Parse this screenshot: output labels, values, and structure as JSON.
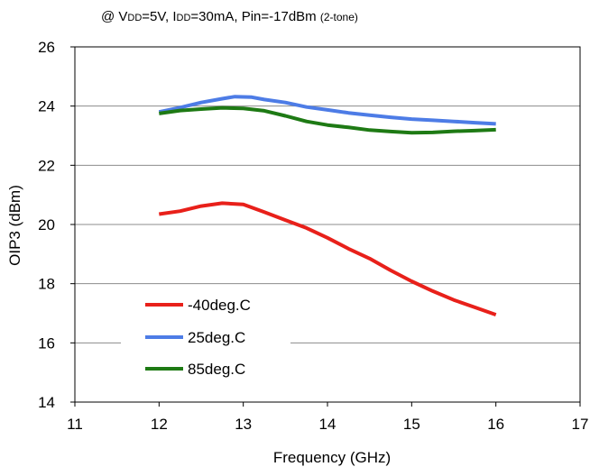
{
  "chart_data": {
    "type": "line",
    "subtitle": {
      "prefix": "@ V",
      "vdd_sub": "DD",
      "mid1": "=5V, I",
      "idd_sub": "DD",
      "mid2": "=30mA, Pin=-17dBm",
      "note": "(2-tone)"
    },
    "xlabel": "Frequency (GHz)",
    "ylabel": "OIP3 (dBm)",
    "xlim": [
      11,
      17
    ],
    "ylim": [
      14,
      26
    ],
    "xticks": [
      11,
      12,
      13,
      14,
      15,
      16,
      17
    ],
    "yticks": [
      14,
      16,
      18,
      20,
      22,
      24,
      26
    ],
    "grid": "horizontal",
    "legend_position": "bottom-left",
    "series": [
      {
        "name": "-40deg.C",
        "color": "#e8201a",
        "x": [
          12.0,
          12.25,
          12.5,
          12.75,
          13.0,
          13.25,
          13.5,
          13.75,
          14.0,
          14.25,
          14.5,
          14.75,
          15.0,
          15.25,
          15.5,
          15.75,
          16.0
        ],
        "y": [
          20.35,
          20.45,
          20.62,
          20.72,
          20.68,
          20.42,
          20.15,
          19.88,
          19.55,
          19.18,
          18.85,
          18.45,
          18.08,
          17.75,
          17.45,
          17.2,
          16.95
        ]
      },
      {
        "name": "25deg.C",
        "color": "#4d7ce6",
        "x": [
          12.0,
          12.25,
          12.5,
          12.75,
          12.9,
          13.1,
          13.25,
          13.5,
          13.75,
          14.0,
          14.25,
          14.5,
          14.75,
          15.0,
          15.25,
          15.5,
          15.75,
          16.0
        ],
        "y": [
          23.8,
          23.95,
          24.12,
          24.25,
          24.32,
          24.3,
          24.22,
          24.12,
          23.97,
          23.87,
          23.77,
          23.69,
          23.62,
          23.56,
          23.52,
          23.48,
          23.44,
          23.4
        ],
        "group": "mid"
      },
      {
        "name": "85deg.C",
        "color": "#1e7a14",
        "x": [
          12.0,
          12.25,
          12.5,
          12.75,
          13.0,
          13.25,
          13.5,
          13.75,
          14.0,
          14.25,
          14.5,
          14.75,
          15.0,
          15.25,
          15.5,
          15.75,
          16.0
        ],
        "y": [
          23.75,
          23.85,
          23.9,
          23.94,
          23.92,
          23.84,
          23.67,
          23.48,
          23.36,
          23.28,
          23.19,
          23.14,
          23.1,
          23.11,
          23.15,
          23.17,
          23.2
        ]
      }
    ]
  }
}
